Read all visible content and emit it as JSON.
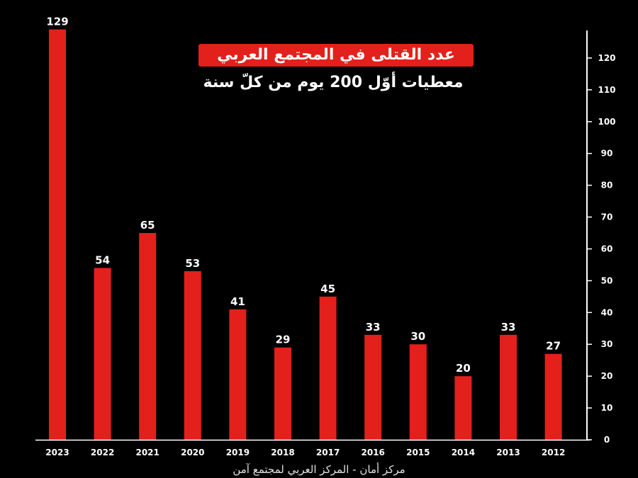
{
  "title": "عدد القتلى في المجتمع العربي",
  "subtitle": "معطيات أوّل 200 يوم من كلّ سنة",
  "source": "مركز أمان - المركز العربي لمجتمع آمن",
  "colors": {
    "background": "#000000",
    "bar": "#e3201b",
    "text": "#ffffff",
    "axis": "#ffffff"
  },
  "chart_data": {
    "type": "bar",
    "categories": [
      "2023",
      "2022",
      "2021",
      "2020",
      "2019",
      "2018",
      "2017",
      "2016",
      "2015",
      "2014",
      "2013",
      "2012"
    ],
    "values": [
      129,
      54,
      65,
      53,
      41,
      29,
      45,
      33,
      30,
      20,
      33,
      27
    ],
    "data_labels": [
      "129",
      "54",
      "65",
      "53",
      "41",
      "29",
      "45",
      "33",
      "30",
      "20",
      "33",
      "27"
    ],
    "title": "عدد القتلى في المجتمع العربي",
    "subtitle": "معطيات أوّل 200 يوم من كلّ سنة",
    "xlabel": "",
    "ylabel": "",
    "ylim": [
      0,
      130
    ],
    "yticks": [
      0,
      10,
      20,
      30,
      40,
      50,
      60,
      70,
      80,
      90,
      100,
      110,
      120
    ],
    "y_axis_position": "right",
    "grid": false,
    "legend": "none"
  }
}
